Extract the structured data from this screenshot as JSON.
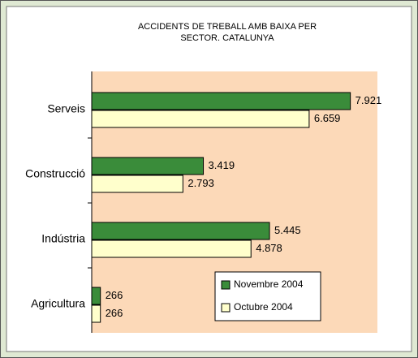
{
  "chart_data": {
    "type": "bar",
    "orientation": "horizontal",
    "title": [
      "ACCIDENTS DE TREBALL AMB BAIXA PER",
      "SECTOR. CATALUNYA"
    ],
    "categories": [
      "Serveis",
      "Construcció",
      "Indústria",
      "Agricultura"
    ],
    "series": [
      {
        "name": "Novembre 2004",
        "color": "#3a8c3a",
        "values": [
          7921,
          3419,
          5445,
          266
        ],
        "value_labels": [
          "7.921",
          "3.419",
          "5.445",
          "266"
        ]
      },
      {
        "name": "Octubre 2004",
        "color": "#ffffcc",
        "values": [
          6659,
          2793,
          4878,
          266
        ],
        "value_labels": [
          "6.659",
          "2.793",
          "4.878",
          "266"
        ]
      }
    ],
    "xlim": [
      0,
      8750
    ],
    "plot_background": "#fcd9b8",
    "legend": "lower-right"
  }
}
